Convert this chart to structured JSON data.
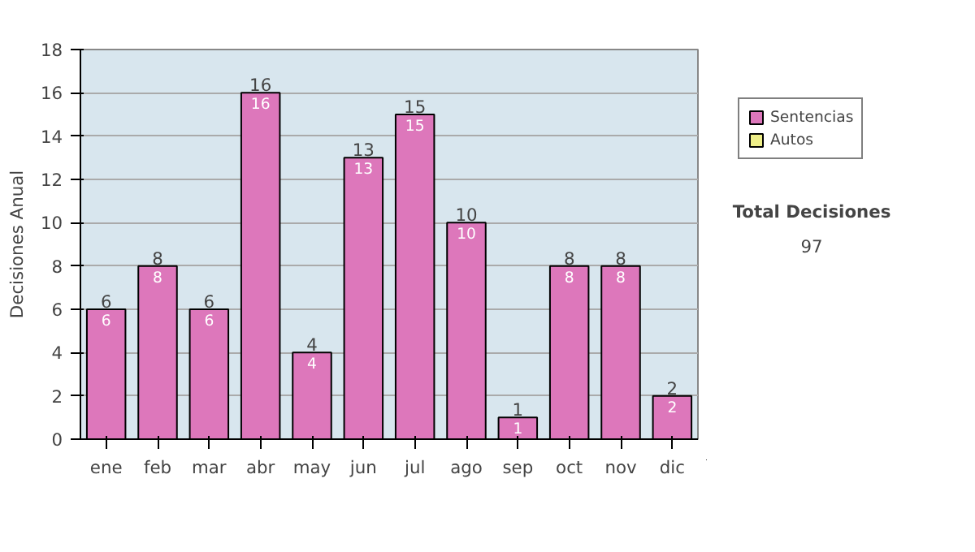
{
  "chart_data": {
    "type": "bar",
    "ylabel": "Decisiones Anual",
    "categories": [
      "ene",
      "feb",
      "mar",
      "abr",
      "may",
      "jun",
      "jul",
      "ago",
      "sep",
      "oct",
      "nov",
      "dic"
    ],
    "stacked": true,
    "series": [
      {
        "name": "Sentencias",
        "color": "#dd77bb",
        "values": [
          6,
          8,
          6,
          16,
          4,
          13,
          15,
          10,
          1,
          8,
          8,
          2
        ],
        "value_labels": [
          "6",
          "8",
          "6",
          "16",
          "4",
          "13",
          "15",
          "10",
          "1",
          "8",
          "8",
          "2"
        ]
      },
      {
        "name": "Autos",
        "color": "#eeee88",
        "values": [
          0,
          0,
          0,
          0,
          0,
          0,
          0,
          0,
          0,
          0,
          0,
          0
        ]
      }
    ],
    "totals": [
      "6",
      "8",
      "6",
      "16",
      "4",
      "13",
      "15",
      "10",
      "1",
      "8",
      "8",
      "2"
    ],
    "ylim": [
      0,
      18
    ],
    "yticks": [
      0,
      2,
      4,
      6,
      8,
      10,
      12,
      14,
      16,
      18
    ],
    "grid": "y",
    "legend": "right",
    "annotations": [
      "Total Decisiones",
      "97"
    ]
  }
}
